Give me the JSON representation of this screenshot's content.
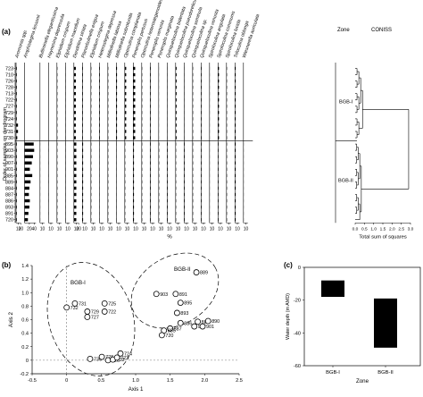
{
  "panel_labels": {
    "a": "(a)",
    "b": "(b)",
    "c": "(c)"
  },
  "chart_data": [
    {
      "type": "bar",
      "panel": "a",
      "orientation": "horizontal",
      "ylabel": "Order of samples on dendrogram",
      "xlabel": "%",
      "samples": [
        "723",
        "710",
        "726",
        "728",
        "713",
        "722",
        "727",
        "729",
        "724",
        "732",
        "731",
        "730",
        "895",
        "903",
        "890",
        "907",
        "901",
        "885",
        "889",
        "884",
        "887",
        "886",
        "893",
        "891",
        "720"
      ],
      "taxa": [
        {
          "name": "Ammonia spp.",
          "values": [
            3,
            3,
            3,
            3,
            3,
            3,
            3,
            3,
            3,
            8,
            8,
            5,
            3,
            3,
            3,
            3,
            3,
            3,
            3,
            3,
            3,
            3,
            3,
            3,
            3
          ],
          "ticks": [
            "10",
            "20"
          ]
        },
        {
          "name": "Amphistegina lessonii",
          "values": [
            0,
            0,
            0,
            0,
            0,
            0,
            0,
            0,
            0,
            0,
            0,
            0,
            38,
            40,
            35,
            30,
            22,
            32,
            25,
            20,
            18,
            22,
            20,
            16,
            14
          ],
          "ticks": [
            "20",
            "40"
          ]
        },
        {
          "name": "Bulliminella elegantissima",
          "values": [
            0,
            0,
            0,
            0,
            0,
            0,
            0,
            0,
            0,
            0,
            0,
            0,
            1,
            1,
            1,
            1,
            1,
            1,
            1,
            1,
            1,
            1,
            1,
            1,
            1
          ],
          "ticks": [
            "10"
          ]
        },
        {
          "name": "Haynesina depressula",
          "values": [
            0,
            0,
            0,
            0,
            0,
            0,
            0,
            0,
            0,
            0,
            0,
            0,
            1,
            1,
            0,
            1,
            0,
            1,
            1,
            0,
            1,
            1,
            0,
            1,
            0
          ],
          "ticks": [
            "10"
          ]
        },
        {
          "name": "Elphidium crispum",
          "values": [
            2,
            2,
            2,
            2,
            2,
            2,
            2,
            2,
            2,
            2,
            2,
            2,
            2,
            2,
            2,
            2,
            2,
            2,
            2,
            2,
            2,
            2,
            2,
            2,
            2
          ],
          "ticks": [
            "10"
          ]
        },
        {
          "name": "Elphidium macellum",
          "values": [
            1,
            1,
            1,
            1,
            1,
            1,
            1,
            1,
            1,
            1,
            1,
            1,
            1,
            1,
            1,
            1,
            1,
            1,
            1,
            1,
            1,
            1,
            1,
            1,
            1
          ],
          "ticks": [
            "10"
          ]
        },
        {
          "name": "Dendritina striata",
          "values": [
            8,
            8,
            8,
            8,
            8,
            8,
            8,
            8,
            8,
            8,
            8,
            8,
            10,
            10,
            10,
            10,
            10,
            10,
            10,
            10,
            10,
            10,
            10,
            10,
            10
          ],
          "ticks": [
            "10",
            "20"
          ]
        },
        {
          "name": "Planorbulinella exigua",
          "values": [
            2,
            2,
            2,
            2,
            2,
            2,
            2,
            2,
            2,
            2,
            2,
            2,
            3,
            3,
            3,
            3,
            3,
            3,
            3,
            3,
            3,
            3,
            3,
            3,
            3
          ],
          "ticks": [
            "10"
          ]
        },
        {
          "name": "Elphidium crispum",
          "values": [
            2,
            2,
            2,
            2,
            2,
            2,
            2,
            2,
            2,
            2,
            2,
            2,
            2,
            2,
            2,
            2,
            2,
            2,
            2,
            2,
            2,
            2,
            2,
            2,
            2
          ],
          "ticks": [
            "10"
          ]
        },
        {
          "name": "Heterostegina depressa",
          "values": [
            2,
            2,
            2,
            2,
            2,
            2,
            2,
            2,
            2,
            2,
            2,
            2,
            1,
            1,
            1,
            1,
            1,
            1,
            1,
            1,
            1,
            1,
            1,
            1,
            1
          ],
          "ticks": [
            "10"
          ]
        },
        {
          "name": "Milliolinella labiosa",
          "values": [
            2,
            2,
            2,
            2,
            2,
            2,
            2,
            2,
            2,
            2,
            2,
            2,
            2,
            2,
            2,
            2,
            2,
            2,
            2,
            2,
            2,
            2,
            2,
            2,
            2
          ],
          "ticks": [
            "10"
          ]
        },
        {
          "name": "Milliolinella subrotunda",
          "values": [
            3,
            3,
            3,
            3,
            3,
            3,
            3,
            3,
            3,
            3,
            3,
            3,
            1,
            1,
            1,
            1,
            1,
            1,
            1,
            1,
            1,
            1,
            1,
            1,
            1
          ],
          "ticks": [
            "10"
          ]
        },
        {
          "name": "Operculina complanata",
          "values": [
            6,
            6,
            6,
            6,
            6,
            6,
            6,
            6,
            6,
            6,
            6,
            6,
            2,
            2,
            2,
            2,
            2,
            2,
            2,
            2,
            2,
            2,
            2,
            2,
            2
          ],
          "ticks": [
            "10"
          ]
        },
        {
          "name": "Peneroplis pertusus",
          "values": [
            8,
            8,
            8,
            8,
            8,
            8,
            8,
            8,
            8,
            8,
            8,
            8,
            3,
            3,
            3,
            3,
            3,
            3,
            3,
            3,
            3,
            3,
            3,
            3,
            3
          ],
          "ticks": [
            "10"
          ]
        },
        {
          "name": "Operculina heterostegenoides",
          "values": [
            2,
            2,
            2,
            2,
            2,
            2,
            2,
            2,
            2,
            2,
            2,
            2,
            2,
            2,
            2,
            2,
            2,
            2,
            2,
            2,
            2,
            2,
            2,
            2,
            2
          ],
          "ticks": [
            "10"
          ]
        },
        {
          "name": "Peneroplis venusta",
          "values": [
            2,
            2,
            2,
            2,
            2,
            2,
            2,
            2,
            2,
            2,
            2,
            2,
            2,
            2,
            2,
            2,
            2,
            2,
            2,
            2,
            2,
            2,
            2,
            2,
            2
          ],
          "ticks": [
            "10"
          ]
        },
        {
          "name": "Peneroplis marginata",
          "values": [
            1,
            1,
            1,
            1,
            1,
            1,
            1,
            1,
            1,
            1,
            1,
            1,
            2,
            2,
            2,
            2,
            2,
            2,
            2,
            2,
            2,
            2,
            2,
            2,
            2
          ],
          "ticks": [
            "10"
          ]
        },
        {
          "name": "Quinqueloculina bidentata",
          "values": [
            1,
            1,
            1,
            1,
            1,
            1,
            1,
            1,
            1,
            1,
            1,
            1,
            2,
            2,
            2,
            2,
            2,
            2,
            2,
            2,
            2,
            2,
            2,
            2,
            2
          ],
          "ticks": [
            "10"
          ]
        },
        {
          "name": "Quinqueloculina pseudoreticulata",
          "values": [
            4,
            4,
            4,
            4,
            4,
            4,
            4,
            4,
            4,
            4,
            4,
            4,
            2,
            2,
            2,
            2,
            2,
            2,
            2,
            2,
            2,
            2,
            2,
            2,
            2
          ],
          "ticks": [
            "10"
          ]
        },
        {
          "name": "Quinqueloculina seminula",
          "values": [
            1,
            1,
            1,
            1,
            1,
            1,
            1,
            1,
            1,
            1,
            1,
            1,
            2,
            2,
            2,
            2,
            2,
            2,
            2,
            2,
            2,
            2,
            2,
            2,
            2
          ],
          "ticks": [
            "10"
          ]
        },
        {
          "name": "Quinqueloculina sp.",
          "values": [
            2,
            2,
            2,
            2,
            2,
            2,
            2,
            2,
            2,
            2,
            2,
            2,
            2,
            2,
            2,
            2,
            2,
            2,
            2,
            2,
            2,
            2,
            2,
            2,
            2
          ],
          "ticks": [
            "10"
          ]
        },
        {
          "name": "Quinqueloculina venusta",
          "values": [
            2,
            2,
            2,
            2,
            2,
            2,
            2,
            2,
            2,
            2,
            2,
            2,
            2,
            2,
            2,
            2,
            2,
            2,
            2,
            2,
            2,
            2,
            2,
            2,
            2
          ],
          "ticks": [
            "10"
          ]
        },
        {
          "name": "Spiroloculina angulata",
          "values": [
            1,
            1,
            1,
            1,
            1,
            1,
            1,
            1,
            1,
            1,
            1,
            1,
            1,
            1,
            1,
            1,
            1,
            1,
            1,
            1,
            1,
            1,
            1,
            1,
            1
          ],
          "ticks": [
            "10"
          ]
        },
        {
          "name": "Spiroloculina communis",
          "values": [
            4,
            4,
            4,
            4,
            4,
            4,
            4,
            4,
            4,
            4,
            4,
            4,
            2,
            2,
            2,
            2,
            2,
            2,
            2,
            2,
            2,
            2,
            2,
            2,
            2
          ],
          "ticks": [
            "10"
          ]
        },
        {
          "name": "Spiroloculina lucida",
          "values": [
            2,
            2,
            2,
            2,
            2,
            2,
            2,
            2,
            2,
            2,
            2,
            2,
            2,
            2,
            2,
            2,
            2,
            2,
            2,
            2,
            2,
            2,
            2,
            2,
            2
          ],
          "ticks": [
            "10"
          ]
        },
        {
          "name": "Triloculina oblonga",
          "values": [
            3,
            3,
            3,
            3,
            3,
            3,
            3,
            3,
            3,
            3,
            3,
            3,
            3,
            3,
            3,
            3,
            3,
            3,
            3,
            3,
            3,
            3,
            3,
            3,
            3
          ],
          "ticks": [
            "10"
          ]
        },
        {
          "name": "Wiesnerella auriculata",
          "values": [
            0,
            0,
            0,
            0,
            0,
            0,
            0,
            0,
            0,
            0,
            0,
            0,
            1,
            1,
            1,
            1,
            1,
            1,
            1,
            1,
            1,
            1,
            1,
            1,
            1
          ],
          "ticks": [
            "10"
          ]
        }
      ],
      "zones": [
        {
          "label": "BGB-I",
          "from": "723",
          "to": "730"
        },
        {
          "label": "BGB-II",
          "from": "895",
          "to": "720"
        }
      ],
      "zone_header": "Zone",
      "dendrogram_header": "CONISS",
      "dendrogram_xlabel": "Total sum of squares",
      "dendrogram_ticks": [
        "0.0",
        "0.5",
        "1.0",
        "1.5",
        "2.0",
        "2.5",
        "3.0"
      ]
    },
    {
      "type": "scatter",
      "panel": "b",
      "xlabel": "Axis 1",
      "ylabel": "Axis 2",
      "xlim": [
        -0.5,
        2.5
      ],
      "ylim": [
        -0.2,
        1.4
      ],
      "xticks": [
        "-0.5",
        "0",
        "0.5",
        "1.0",
        "1.5",
        "2.0",
        "2.5"
      ],
      "yticks": [
        "-0.2",
        "0",
        "0.2",
        "0.4",
        "0.6",
        "0.8",
        "1.0",
        "1.2",
        "1.4"
      ],
      "groups": [
        {
          "label": "BGB-I"
        },
        {
          "label": "BGB-II"
        }
      ],
      "points": [
        {
          "label": "889",
          "x": 1.88,
          "y": 1.3
        },
        {
          "label": "903",
          "x": 1.3,
          "y": 0.98
        },
        {
          "label": "891",
          "x": 1.58,
          "y": 0.98
        },
        {
          "label": "895",
          "x": 1.65,
          "y": 0.85
        },
        {
          "label": "893",
          "x": 1.6,
          "y": 0.7
        },
        {
          "label": "886",
          "x": 1.65,
          "y": 0.55
        },
        {
          "label": "887",
          "x": 1.5,
          "y": 0.47
        },
        {
          "label": "885",
          "x": 1.41,
          "y": 0.44
        },
        {
          "label": "720",
          "x": 1.38,
          "y": 0.37
        },
        {
          "label": "884",
          "x": 1.9,
          "y": 0.57
        },
        {
          "label": "907",
          "x": 1.85,
          "y": 0.5
        },
        {
          "label": "901",
          "x": 1.97,
          "y": 0.5
        },
        {
          "label": "890",
          "x": 2.05,
          "y": 0.58
        },
        {
          "label": "731",
          "x": 0.12,
          "y": 0.84
        },
        {
          "label": "732",
          "x": 0.0,
          "y": 0.78
        },
        {
          "label": "729",
          "x": 0.3,
          "y": 0.72
        },
        {
          "label": "727",
          "x": 0.3,
          "y": 0.64
        },
        {
          "label": "725",
          "x": 0.55,
          "y": 0.84
        },
        {
          "label": "722",
          "x": 0.55,
          "y": 0.72
        },
        {
          "label": "724",
          "x": 0.78,
          "y": 0.1
        },
        {
          "label": "730",
          "x": 0.34,
          "y": 0.02
        },
        {
          "label": "728",
          "x": 0.51,
          "y": 0.05
        },
        {
          "label": "726",
          "x": 0.6,
          "y": 0.0
        },
        {
          "label": "713",
          "x": 0.67,
          "y": 0.01
        },
        {
          "label": "723",
          "x": 0.73,
          "y": 0.04
        }
      ]
    },
    {
      "type": "bar",
      "panel": "c",
      "ylabel": "Water depth (m AMD)",
      "xlabel": "Zone",
      "ylim": [
        -60,
        0
      ],
      "yticks": [
        "0",
        "-20",
        "-40",
        "-60"
      ],
      "categories": [
        "BGB-I",
        "BGB-II"
      ],
      "ranges": [
        [
          -8,
          -18
        ],
        [
          -19,
          -49
        ]
      ]
    }
  ]
}
